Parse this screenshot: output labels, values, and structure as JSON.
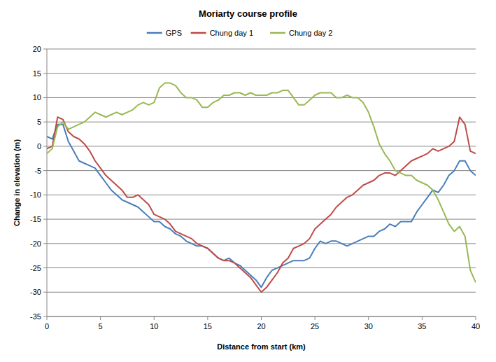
{
  "chart_data": {
    "type": "line",
    "title": "Moriarty course profile",
    "x_label": "Distance from start (km)",
    "y_label": "Change in elevation (m)",
    "x": [
      0,
      0.5,
      1,
      1.5,
      2,
      2.5,
      3,
      3.5,
      4,
      4.5,
      5,
      5.5,
      6,
      6.5,
      7,
      7.5,
      8,
      8.5,
      9,
      9.5,
      10,
      10.5,
      11,
      11.5,
      12,
      12.5,
      13,
      13.5,
      14,
      14.5,
      15,
      15.5,
      16,
      16.5,
      17,
      17.5,
      18,
      18.5,
      19,
      19.5,
      20,
      20.5,
      21,
      21.5,
      22,
      22.5,
      23,
      23.5,
      24,
      24.5,
      25,
      25.5,
      26,
      26.5,
      27,
      27.5,
      28,
      28.5,
      29,
      29.5,
      30,
      30.5,
      31,
      31.5,
      32,
      32.5,
      33,
      33.5,
      34,
      34.5,
      35,
      35.5,
      36,
      36.5,
      37,
      37.5,
      38,
      38.5,
      39,
      39.5,
      40
    ],
    "series": [
      {
        "name": "GPS",
        "color": "#4a7ebb",
        "values": [
          2,
          1.5,
          4.5,
          4.5,
          1,
          -1,
          -3,
          -3.5,
          -4,
          -4.5,
          -6,
          -7.5,
          -9,
          -10,
          -11,
          -11.5,
          -12,
          -12.5,
          -13.5,
          -14.5,
          -15.5,
          -15.5,
          -16.5,
          -17,
          -18,
          -18.5,
          -19.5,
          -20,
          -20.5,
          -20.5,
          -21,
          -22,
          -23,
          -23.5,
          -23,
          -24,
          -24.5,
          -25.5,
          -26.5,
          -27.5,
          -29,
          -27,
          -25.5,
          -25,
          -24.5,
          -24,
          -23.5,
          -23.5,
          -23.5,
          -23,
          -21,
          -19.5,
          -20,
          -19.5,
          -19.5,
          -20,
          -20.5,
          -20,
          -19.5,
          -19,
          -18.5,
          -18.5,
          -17.5,
          -17,
          -16,
          -16.5,
          -15.5,
          -15.5,
          -15.5,
          -13.5,
          -12,
          -10.5,
          -9,
          -9.5,
          -8,
          -6,
          -5,
          -3,
          -3,
          -5,
          -6
        ]
      },
      {
        "name": "Chung day 1",
        "color": "#be4b48",
        "values": [
          -0.5,
          0,
          6,
          5.5,
          3,
          2,
          1.5,
          0.5,
          -1,
          -3,
          -4.5,
          -6,
          -7,
          -8,
          -9,
          -10.5,
          -10.5,
          -10,
          -11,
          -12,
          -14,
          -14.5,
          -15,
          -16,
          -17.5,
          -18,
          -18.5,
          -19,
          -20,
          -20.5,
          -21,
          -22,
          -23,
          -23.5,
          -23.5,
          -24,
          -25,
          -26,
          -27,
          -28.5,
          -30,
          -29,
          -27.5,
          -26,
          -24,
          -23,
          -21,
          -20.5,
          -20,
          -19,
          -17,
          -16,
          -15,
          -14,
          -12.5,
          -11.5,
          -10.5,
          -10,
          -9,
          -8,
          -7.5,
          -7,
          -6,
          -5.5,
          -5.5,
          -6,
          -5,
          -4,
          -3,
          -2.5,
          -2,
          -1.5,
          -0.5,
          -1,
          -0.5,
          0,
          1,
          6,
          4.5,
          -1,
          -1.5
        ]
      },
      {
        "name": "Chung day 2",
        "color": "#98b954",
        "values": [
          -1.5,
          -0.5,
          4,
          5,
          3.5,
          4,
          4.5,
          5,
          6,
          7,
          6.5,
          6,
          6.5,
          7,
          6.5,
          7,
          7.5,
          8.5,
          9,
          8.5,
          9,
          12,
          13,
          13,
          12.5,
          11,
          10,
          10,
          9.5,
          8,
          8,
          9,
          9.5,
          10.5,
          10.5,
          11,
          11,
          10.5,
          11,
          10.5,
          10.5,
          10.5,
          11,
          11,
          11.5,
          11.5,
          10,
          8.5,
          8.5,
          9.5,
          10.5,
          11,
          11,
          11,
          10,
          10,
          10.5,
          10,
          10,
          9,
          7,
          4,
          0.5,
          -1.5,
          -3,
          -5,
          -5.5,
          -6,
          -6,
          -7,
          -7.5,
          -8,
          -9,
          -11,
          -13.5,
          -16,
          -17.5,
          -16.5,
          -18.5,
          -25.5,
          -28
        ]
      }
    ],
    "xlim": [
      0,
      40
    ],
    "xticks": [
      0,
      5,
      10,
      15,
      20,
      25,
      30,
      35,
      40
    ],
    "ylim": [
      -35,
      20
    ],
    "yticks": [
      -35,
      -30,
      -25,
      -20,
      -15,
      -10,
      -5,
      0,
      5,
      10,
      15,
      20
    ],
    "grid": true,
    "legend": "top"
  }
}
